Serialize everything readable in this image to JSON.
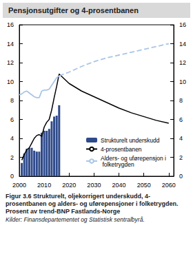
{
  "chart_data": {
    "type": "bar",
    "title": "Pensjonsutgifter og 4-prosentbanen",
    "caption": "Figur 3.6 Strukturelt, oljekorrigert underskudd, 4-prosentbanen og alders- og uførepensjoner i folketrygden. Prosent av trend-BNP Fastlands-Norge",
    "source": "Kilder: Finansdepartementet og Statistisk sentralbyrå.",
    "xlim": [
      2000,
      2062
    ],
    "xticks": [
      2000,
      2010,
      2020,
      2030,
      2040,
      2050,
      2060
    ],
    "ylim": [
      0,
      16
    ],
    "yticks": [
      0,
      2,
      4,
      6,
      8,
      10,
      12,
      14,
      16
    ],
    "y2lim": [
      0,
      16
    ],
    "y2ticks": [
      0,
      2,
      4,
      6,
      8,
      10,
      12,
      14,
      16
    ],
    "grid": false,
    "legend": "lower right",
    "series": [
      {
        "name": "Strukturelt underskudd",
        "type": "bar",
        "color": "#2e4a8b",
        "x": [
          2001,
          2002,
          2003,
          2004,
          2005,
          2006,
          2007,
          2008,
          2009,
          2010,
          2011,
          2012,
          2013,
          2014,
          2015,
          2016
        ],
        "values": [
          1.4,
          2.4,
          2.9,
          3.0,
          3.0,
          2.7,
          2.6,
          2.6,
          4.6,
          4.8,
          4.8,
          5.0,
          5.8,
          6.3,
          6.4,
          7.5
        ]
      },
      {
        "name": "4-prosentbanen",
        "type": "line",
        "color": "#000000",
        "line_style": "solid",
        "x": [
          2001,
          2002,
          2003,
          2004,
          2005,
          2006,
          2007,
          2008,
          2009,
          2010,
          2011,
          2012,
          2013,
          2014,
          2015,
          2016,
          2020,
          2025,
          2030,
          2035,
          2040,
          2045,
          2050,
          2055,
          2060
        ],
        "values": [
          1.7,
          2.3,
          2.8,
          3.0,
          3.5,
          4.0,
          4.3,
          4.4,
          4.2,
          5.2,
          5.7,
          6.0,
          7.0,
          8.3,
          9.5,
          10.8,
          9.8,
          9.0,
          8.4,
          7.8,
          7.2,
          6.7,
          6.3,
          5.9,
          5.6
        ]
      },
      {
        "name": "Alders- og uførepensjon i folketrygden",
        "type": "line",
        "color": "#a9c5e8",
        "line_style": "solid",
        "x": [
          2000,
          2001,
          2002,
          2003,
          2004,
          2005,
          2006,
          2007,
          2008,
          2009,
          2010,
          2011,
          2012,
          2013,
          2014,
          2015,
          2016
        ],
        "values": [
          8.6,
          8.7,
          8.9,
          9.0,
          8.8,
          8.6,
          8.4,
          8.3,
          8.3,
          9.0,
          9.1,
          9.1,
          9.2,
          9.6,
          10.0,
          10.4,
          10.6
        ]
      },
      {
        "type": "line",
        "color": "#a9c5e8",
        "line_style": "dashed",
        "x": [
          2016,
          2020,
          2025,
          2030,
          2035,
          2040,
          2045,
          2050,
          2055,
          2060
        ],
        "values": [
          10.6,
          11.0,
          11.6,
          12.1,
          12.5,
          12.8,
          13.1,
          13.4,
          13.7,
          14.0
        ]
      }
    ]
  }
}
